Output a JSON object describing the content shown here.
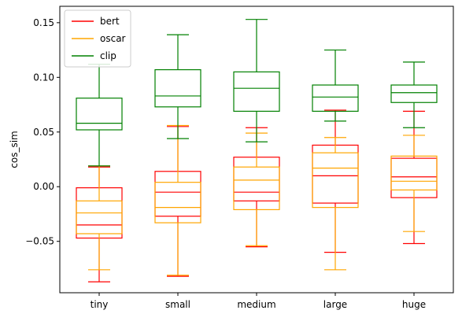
{
  "chart_data": {
    "type": "boxplot",
    "categories": [
      "tiny",
      "small",
      "medium",
      "large",
      "huge"
    ],
    "ylabel": "cos_sim",
    "xlabel": "",
    "ylim": [
      -0.097,
      0.165
    ],
    "yticks": [
      -0.05,
      0.0,
      0.05,
      0.1,
      0.15
    ],
    "ytick_labels": [
      "−0.05",
      "0.00",
      "0.05",
      "0.10",
      "0.15"
    ],
    "legend_position": "upper-left",
    "grid": false,
    "series": [
      {
        "name": "bert",
        "color": "#ff0000",
        "boxes": [
          {
            "whislo": -0.087,
            "q1": -0.047,
            "med": -0.035,
            "q3": -0.001,
            "whishi": 0.018
          },
          {
            "whislo": -0.082,
            "q1": -0.027,
            "med": -0.005,
            "q3": 0.014,
            "whishi": 0.055
          },
          {
            "whislo": -0.055,
            "q1": -0.013,
            "med": -0.005,
            "q3": 0.027,
            "whishi": 0.054
          },
          {
            "whislo": -0.06,
            "q1": -0.015,
            "med": 0.01,
            "q3": 0.038,
            "whishi": 0.07
          },
          {
            "whislo": -0.052,
            "q1": -0.01,
            "med": 0.009,
            "q3": 0.026,
            "whishi": 0.069
          }
        ]
      },
      {
        "name": "oscar",
        "color": "#ffa500",
        "boxes": [
          {
            "whislo": -0.076,
            "q1": -0.043,
            "med": -0.024,
            "q3": -0.013,
            "whishi": 0.019
          },
          {
            "whislo": -0.081,
            "q1": -0.033,
            "med": -0.019,
            "q3": 0.004,
            "whishi": 0.056
          },
          {
            "whislo": -0.054,
            "q1": -0.021,
            "med": 0.006,
            "q3": 0.018,
            "whishi": 0.049
          },
          {
            "whislo": -0.076,
            "q1": -0.019,
            "med": 0.017,
            "q3": 0.031,
            "whishi": 0.045
          },
          {
            "whislo": -0.041,
            "q1": -0.003,
            "med": 0.005,
            "q3": 0.028,
            "whishi": 0.047
          }
        ]
      },
      {
        "name": "clip",
        "color": "#008000",
        "boxes": [
          {
            "whislo": 0.019,
            "q1": 0.052,
            "med": 0.058,
            "q3": 0.081,
            "whishi": 0.112
          },
          {
            "whislo": 0.044,
            "q1": 0.073,
            "med": 0.083,
            "q3": 0.107,
            "whishi": 0.139
          },
          {
            "whislo": 0.041,
            "q1": 0.069,
            "med": 0.09,
            "q3": 0.105,
            "whishi": 0.153
          },
          {
            "whislo": 0.06,
            "q1": 0.069,
            "med": 0.082,
            "q3": 0.093,
            "whishi": 0.125
          },
          {
            "whislo": 0.054,
            "q1": 0.077,
            "med": 0.086,
            "q3": 0.093,
            "whishi": 0.114
          }
        ]
      }
    ]
  }
}
